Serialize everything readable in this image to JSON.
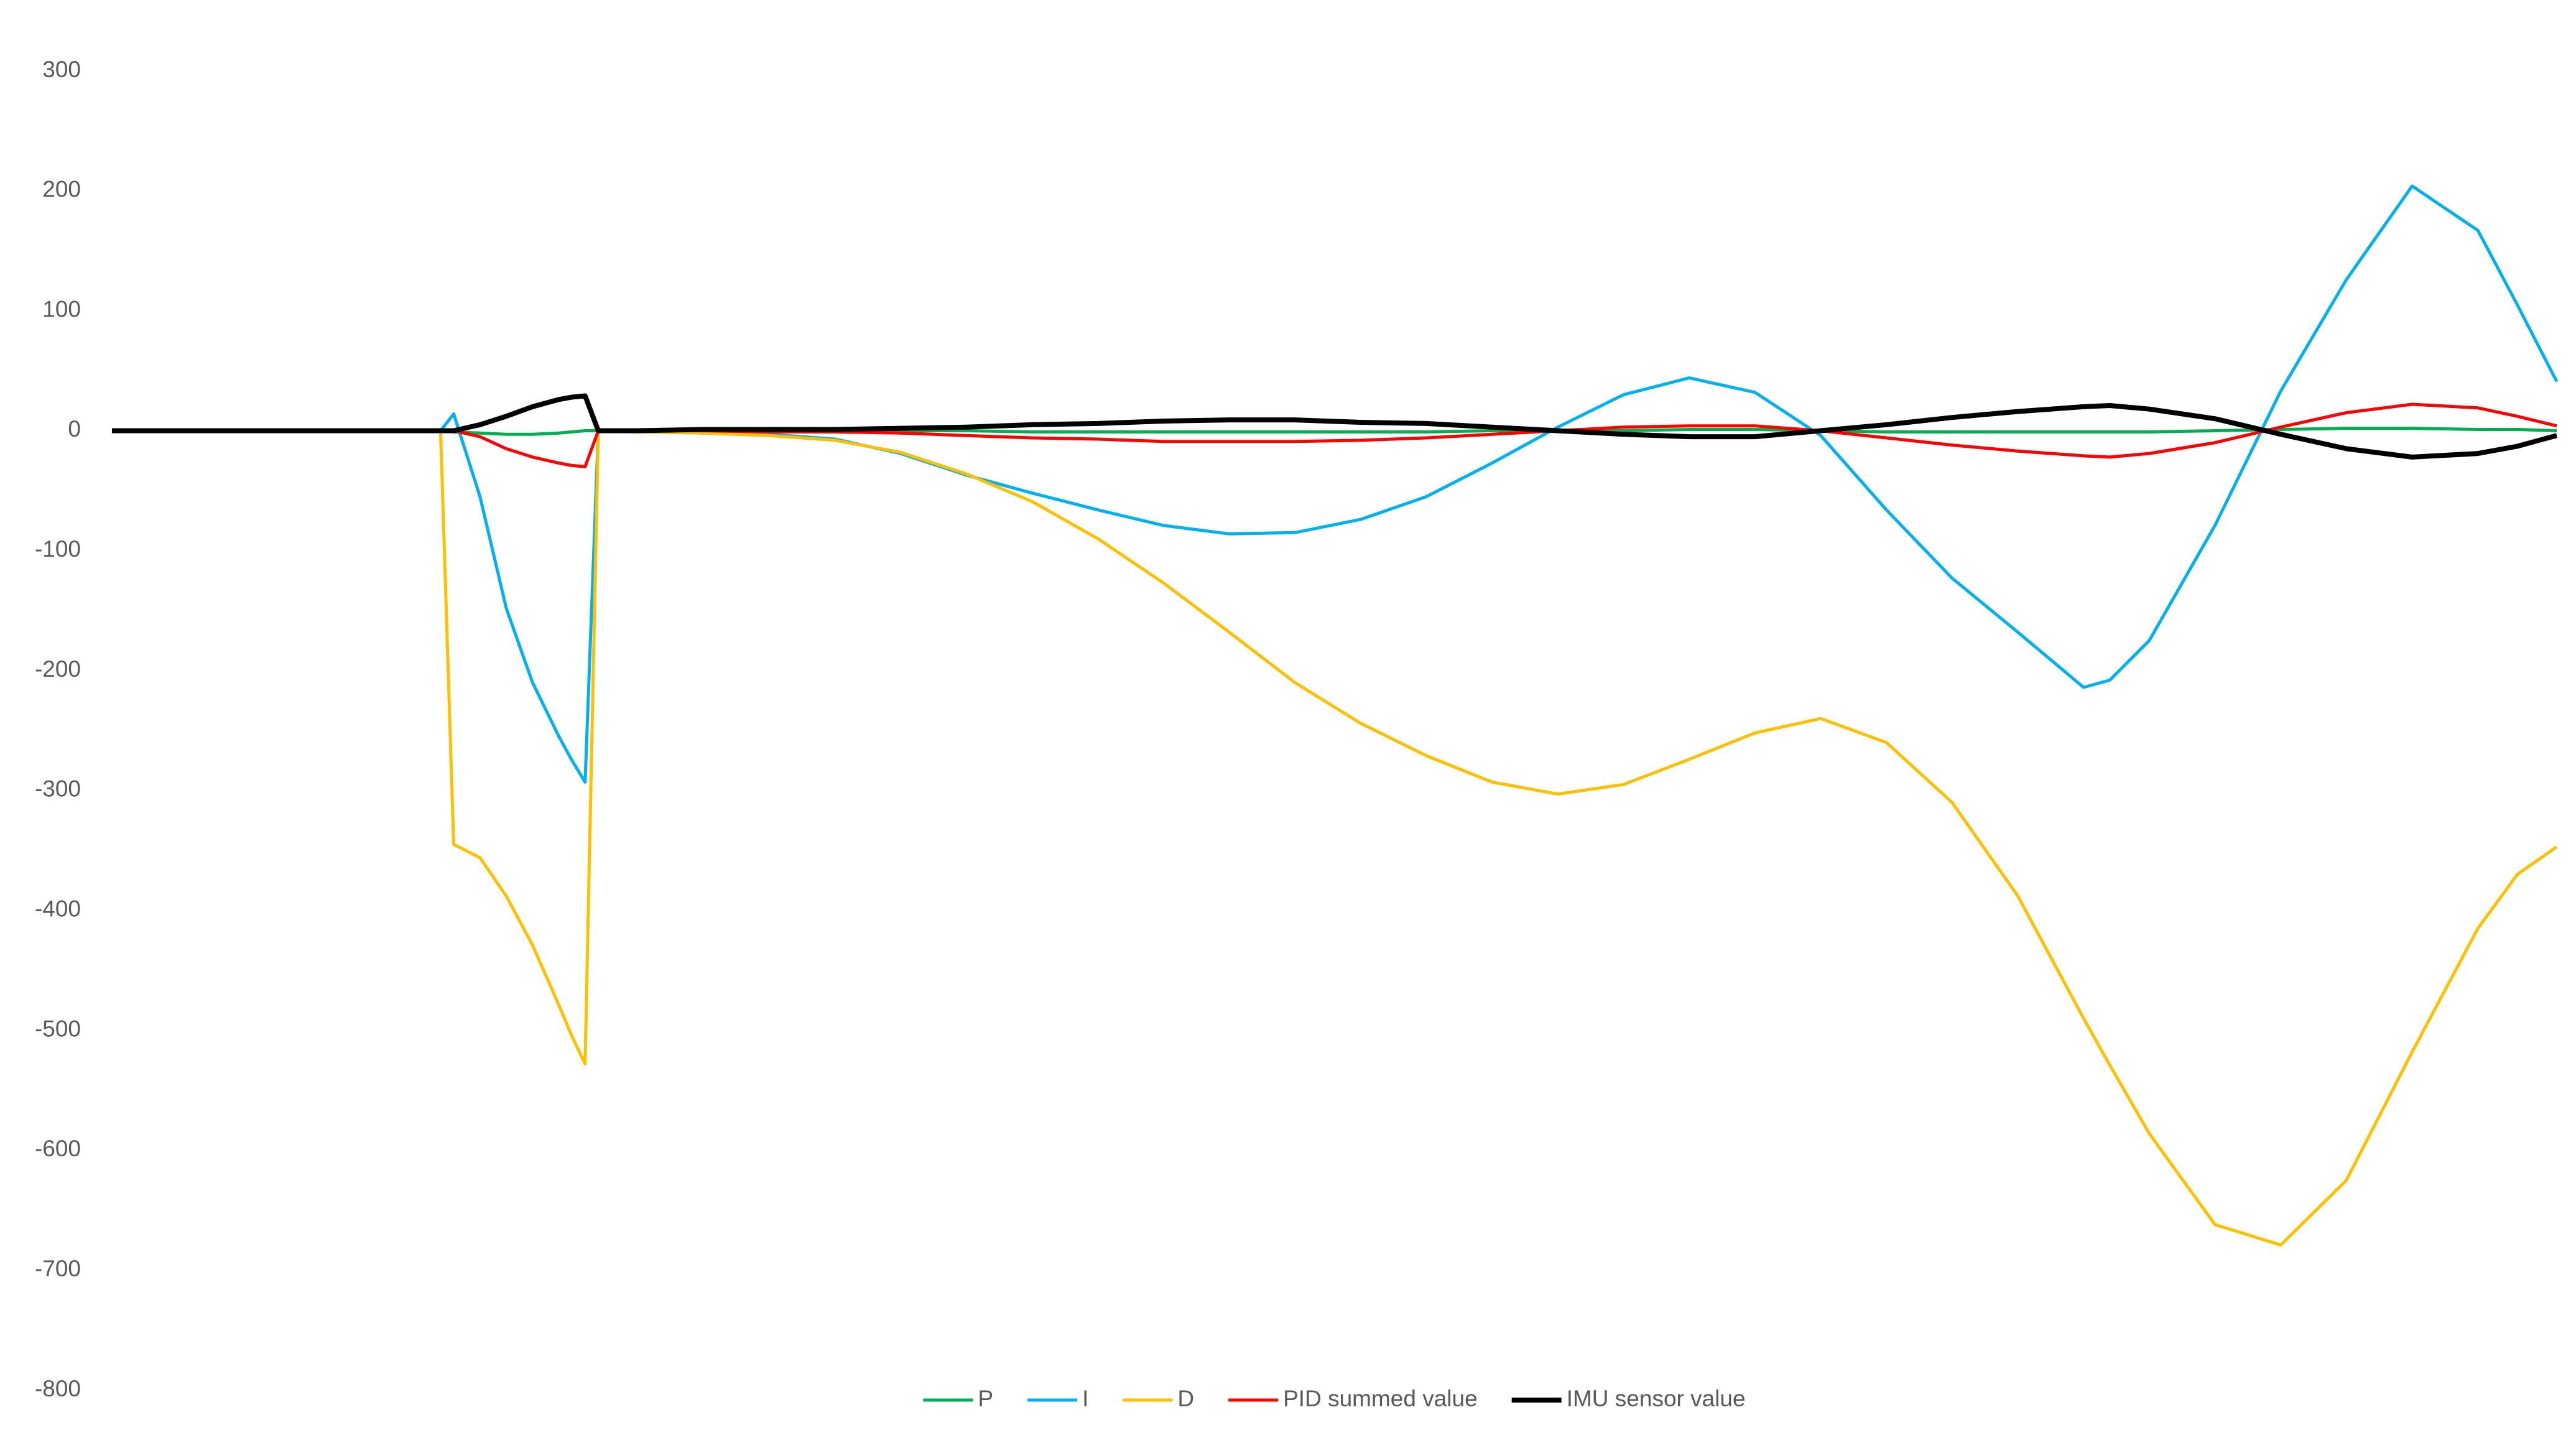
{
  "chart_data": {
    "type": "line",
    "x": [
      0,
      25,
      26,
      28,
      30,
      32,
      34,
      35,
      36,
      37,
      40,
      45,
      50,
      55,
      60,
      65,
      70,
      75,
      80,
      85,
      90,
      95,
      100,
      105,
      110,
      115,
      120,
      125,
      130,
      135,
      140,
      145,
      150,
      152,
      155,
      160,
      165,
      170,
      175,
      180,
      183,
      186
    ],
    "xlim": [
      0,
      186
    ],
    "ylim": [
      -800,
      300
    ],
    "yticks": [
      -800,
      -700,
      -600,
      -500,
      -400,
      -300,
      -200,
      -100,
      0,
      100,
      200,
      300
    ],
    "grid": false,
    "legend": "bottom",
    "series": [
      {
        "name": "P",
        "color": "#00b050",
        "values": [
          0,
          0,
          -1,
          -2,
          -3,
          -3,
          -2,
          -1,
          0,
          0,
          0,
          0,
          0,
          0,
          0,
          0,
          -1,
          -1,
          -1,
          -1,
          -1,
          -1,
          -1,
          0,
          0,
          0,
          1,
          1,
          0,
          -1,
          -1,
          -1,
          -1,
          -1,
          -1,
          0,
          1,
          2,
          2,
          1,
          1,
          0
        ]
      },
      {
        "name": "I",
        "color": "#00b0f0",
        "values": [
          0,
          0,
          14,
          -55,
          -148,
          -210,
          -255,
          -275,
          -293,
          0,
          -1,
          -2,
          -3,
          -7,
          -19,
          -37,
          -52,
          -66,
          -79,
          -86,
          -85,
          -74,
          -55,
          -27,
          3,
          30,
          44,
          32,
          -4,
          -66,
          -123,
          -168,
          -214,
          -208,
          -175,
          -79,
          33,
          126,
          204,
          167,
          105,
          41
        ]
      },
      {
        "name": "D",
        "color": "#ffc000",
        "values": [
          0,
          0,
          -345,
          -356,
          -388,
          -429,
          -479,
          -505,
          -528,
          0,
          -1,
          -2,
          -4,
          -8,
          -18,
          -36,
          -59,
          -90,
          -127,
          -168,
          -210,
          -244,
          -271,
          -293,
          -303,
          -295,
          -274,
          -252,
          -240,
          -260,
          -310,
          -388,
          -490,
          -529,
          -586,
          -662,
          -679,
          -625,
          -518,
          -415,
          -370,
          -347
        ]
      },
      {
        "name": "PID summed value",
        "color": "#ff0000",
        "values": [
          0,
          0,
          0,
          -5,
          -15,
          -22,
          -27,
          -29,
          -30,
          0,
          0,
          0,
          -1,
          -1,
          -2,
          -4,
          -6,
          -7,
          -9,
          -9,
          -9,
          -8,
          -6,
          -3,
          0,
          3,
          4,
          4,
          0,
          -6,
          -12,
          -17,
          -21,
          -22,
          -19,
          -10,
          3,
          15,
          22,
          19,
          12,
          4
        ]
      },
      {
        "name": "IMU sensor value",
        "color": "#000000",
        "values": [
          0,
          0,
          0,
          5,
          12,
          20,
          26,
          28,
          29,
          0,
          0,
          1,
          1,
          1,
          2,
          3,
          5,
          6,
          8,
          9,
          9,
          7,
          6,
          3,
          0,
          -3,
          -5,
          -5,
          0,
          5,
          11,
          16,
          20,
          21,
          18,
          10,
          -3,
          -15,
          -22,
          -19,
          -13,
          -4
        ]
      }
    ]
  }
}
